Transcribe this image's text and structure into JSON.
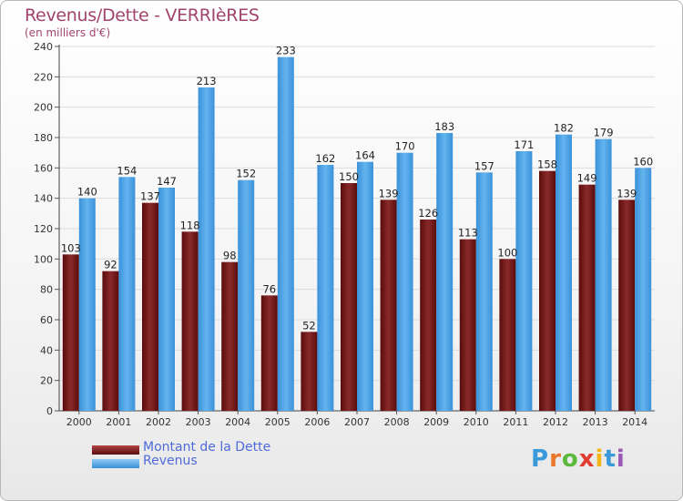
{
  "header": {
    "title": "Revenus/Dette - VERRIèRES",
    "subtitle": "(en milliers d'€)"
  },
  "legend": {
    "items": [
      {
        "label": "Montant de la Dette",
        "color": "#7a1a1a"
      },
      {
        "label": "Revenus",
        "color": "#4fa6e8"
      }
    ]
  },
  "logo": {
    "text": "Proxiti",
    "letters": [
      "P",
      "r",
      "o",
      "x",
      "i",
      "t",
      "i"
    ],
    "colors": [
      "#3a9ad9",
      "#e8792a",
      "#5bb83a",
      "#e03c31",
      "#f2b619",
      "#3a9ad9",
      "#9b59b6"
    ]
  },
  "colors": {
    "dette": "#7a1a1a",
    "revenus": "#4fa6e8",
    "title": "#a0446c"
  },
  "chart_data": {
    "type": "bar",
    "title": "Revenus/Dette - VERRIèRES",
    "subtitle": "(en milliers d'€)",
    "categories": [
      "2000",
      "2001",
      "2002",
      "2003",
      "2004",
      "2005",
      "2006",
      "2007",
      "2008",
      "2009",
      "2010",
      "2011",
      "2012",
      "2013",
      "2014"
    ],
    "series": [
      {
        "name": "Montant de la Dette",
        "color": "#7a1a1a",
        "values": [
          103,
          92,
          137,
          118,
          98,
          76,
          52,
          150,
          139,
          126,
          113,
          100,
          158,
          149,
          139
        ]
      },
      {
        "name": "Revenus",
        "color": "#4fa6e8",
        "values": [
          140,
          154,
          147,
          213,
          152,
          233,
          162,
          164,
          170,
          183,
          157,
          171,
          182,
          179,
          160
        ]
      }
    ],
    "ylim": [
      0,
      240
    ],
    "yticks": [
      0,
      20,
      40,
      60,
      80,
      100,
      120,
      140,
      160,
      180,
      200,
      220,
      240
    ],
    "grid": true,
    "legend_position": "bottom-left"
  }
}
